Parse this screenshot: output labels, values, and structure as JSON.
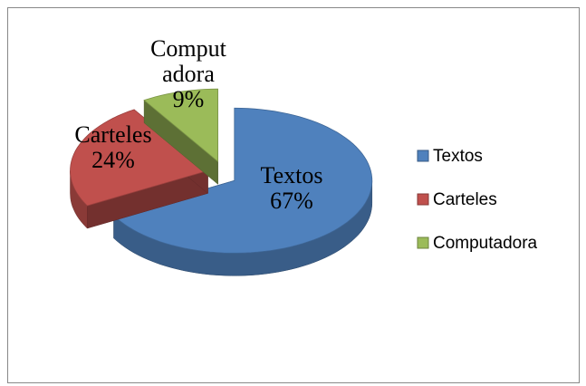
{
  "chart_data": {
    "type": "pie",
    "categories": [
      "Textos",
      "Carteles",
      "Computadora"
    ],
    "values": [
      67,
      24,
      9
    ],
    "value_labels": [
      "67%",
      "24%",
      "9%"
    ],
    "colors": [
      "#4f81bd",
      "#c0504d",
      "#9bbb59"
    ],
    "legend": "right"
  }
}
